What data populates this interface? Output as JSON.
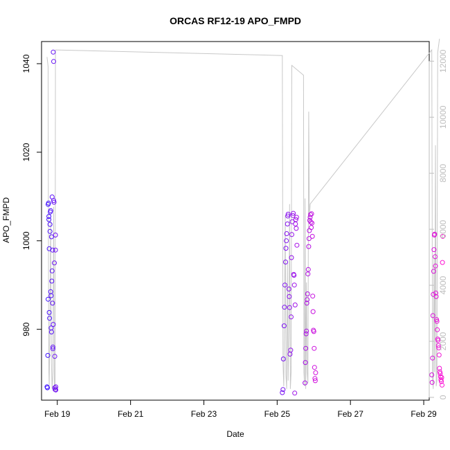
{
  "chart_data": {
    "type": "scatter",
    "title": "ORCAS RF12-19 APO_FMPD",
    "xlabel": "Date",
    "ylabel": "APO_FMPD",
    "ylim": [
      964,
      1045
    ],
    "xlim": [
      0.57,
      11.15
    ],
    "x_unit": "days after Feb 18, 00:00",
    "xticks": [
      {
        "value": 1,
        "label": "Feb 19"
      },
      {
        "value": 3,
        "label": "Feb 21"
      },
      {
        "value": 5,
        "label": "Feb 23"
      },
      {
        "value": 7,
        "label": "Feb 25"
      },
      {
        "value": 9,
        "label": "Feb 27"
      },
      {
        "value": 11,
        "label": "Feb 29"
      }
    ],
    "yticks": [
      {
        "value": 980,
        "label": "980"
      },
      {
        "value": 1000,
        "label": "1000"
      },
      {
        "value": 1020,
        "label": "1020"
      },
      {
        "value": 1040,
        "label": "1040"
      }
    ],
    "y2lim": [
      -100,
      12700
    ],
    "y2ticks": [
      {
        "value": 0,
        "label": "0"
      },
      {
        "value": 2000,
        "label": "2000"
      },
      {
        "value": 4000,
        "label": "4000"
      },
      {
        "value": 6000,
        "label": "6000"
      },
      {
        "value": 8000,
        "label": "8000"
      },
      {
        "value": 10000,
        "label": "10000"
      },
      {
        "value": 12000,
        "label": "12000"
      }
    ],
    "grid": false,
    "colors": {
      "start": "#3b10ff",
      "end": "#ff10d2",
      "altitude_line": "#c8c8c8"
    },
    "altitude_line": [
      [
        0.72,
        12150
      ],
      [
        0.75,
        11800
      ],
      [
        0.76,
        4000
      ],
      [
        0.77,
        900
      ],
      [
        0.78,
        400
      ],
      [
        0.8,
        2800
      ],
      [
        0.82,
        6300
      ],
      [
        0.84,
        1200
      ],
      [
        0.86,
        300
      ],
      [
        0.88,
        900
      ],
      [
        0.9,
        6800
      ],
      [
        0.92,
        400
      ],
      [
        0.94,
        200
      ],
      [
        0.95,
        12400
      ],
      [
        7.14,
        12200
      ],
      [
        7.16,
        1200
      ],
      [
        7.18,
        400
      ],
      [
        7.2,
        2800
      ],
      [
        7.22,
        6500
      ],
      [
        7.24,
        800
      ],
      [
        7.26,
        300
      ],
      [
        7.28,
        4800
      ],
      [
        7.3,
        600
      ],
      [
        7.32,
        2300
      ],
      [
        7.34,
        6900
      ],
      [
        7.36,
        300
      ],
      [
        7.38,
        900
      ],
      [
        7.4,
        11850
      ],
      [
        7.72,
        11500
      ],
      [
        7.73,
        900
      ],
      [
        7.75,
        400
      ],
      [
        7.76,
        7100
      ],
      [
        7.78,
        300
      ],
      [
        7.8,
        4100
      ],
      [
        7.82,
        900
      ],
      [
        7.84,
        500
      ],
      [
        7.86,
        10200
      ],
      [
        7.88,
        6400
      ],
      [
        7.9,
        6900
      ],
      [
        11.22,
        12400
      ],
      [
        11.24,
        600
      ],
      [
        11.26,
        300
      ],
      [
        11.28,
        5000
      ],
      [
        11.3,
        900
      ],
      [
        11.32,
        9000
      ],
      [
        11.34,
        400
      ],
      [
        11.36,
        600
      ],
      [
        11.38,
        12300
      ],
      [
        11.43,
        12800
      ]
    ],
    "points": [
      [
        0.72,
        967.0
      ],
      [
        0.73,
        966.8
      ],
      [
        0.74,
        974.1
      ],
      [
        0.75,
        986.8
      ],
      [
        0.75,
        1008.2
      ],
      [
        0.76,
        1008.5
      ],
      [
        0.77,
        1004.8
      ],
      [
        0.77,
        1005.5
      ],
      [
        0.78,
        998.2
      ],
      [
        0.78,
        983.8
      ],
      [
        0.79,
        982.5
      ],
      [
        0.8,
        1002.1
      ],
      [
        0.8,
        1003.7
      ],
      [
        0.81,
        1006.5
      ],
      [
        0.82,
        1006.8
      ],
      [
        0.82,
        988.5
      ],
      [
        0.83,
        987.6
      ],
      [
        0.83,
        980.3
      ],
      [
        0.84,
        979.4
      ],
      [
        0.84,
        1000.9
      ],
      [
        0.85,
        990.9
      ],
      [
        0.86,
        993.2
      ],
      [
        0.86,
        1009.9
      ],
      [
        0.87,
        997.9
      ],
      [
        0.87,
        985.9
      ],
      [
        0.88,
        976.0
      ],
      [
        0.88,
        975.6
      ],
      [
        0.89,
        981.1
      ],
      [
        0.89,
        1042.6
      ],
      [
        0.9,
        1040.5
      ],
      [
        0.9,
        1009.1
      ],
      [
        0.91,
        1008.7
      ],
      [
        0.92,
        995.0
      ],
      [
        0.93,
        973.9
      ],
      [
        0.93,
        966.8
      ],
      [
        0.94,
        966.4
      ],
      [
        0.95,
        997.9
      ],
      [
        0.95,
        1001.3
      ],
      [
        0.96,
        967.0
      ],
      [
        0.96,
        966.3
      ],
      [
        7.14,
        965.7
      ],
      [
        7.16,
        966.4
      ],
      [
        7.17,
        973.3
      ],
      [
        7.19,
        980.8
      ],
      [
        7.2,
        985.0
      ],
      [
        7.21,
        990.0
      ],
      [
        7.23,
        995.2
      ],
      [
        7.24,
        998.3
      ],
      [
        7.25,
        1000.0
      ],
      [
        7.26,
        1001.6
      ],
      [
        7.28,
        1003.8
      ],
      [
        7.29,
        1005.6
      ],
      [
        7.3,
        1006.0
      ],
      [
        7.32,
        989.1
      ],
      [
        7.33,
        987.4
      ],
      [
        7.34,
        984.9
      ],
      [
        7.35,
        974.4
      ],
      [
        7.37,
        975.3
      ],
      [
        7.38,
        982.8
      ],
      [
        7.39,
        996.2
      ],
      [
        7.4,
        1001.4
      ],
      [
        7.41,
        1004.3
      ],
      [
        7.43,
        1005.7
      ],
      [
        7.44,
        1006.2
      ],
      [
        7.45,
        992.4
      ],
      [
        7.46,
        992.2
      ],
      [
        7.47,
        990.0
      ],
      [
        7.48,
        965.6
      ],
      [
        7.49,
        985.5
      ],
      [
        7.5,
        1003.8
      ],
      [
        7.51,
        1004.8
      ],
      [
        7.52,
        1002.8
      ],
      [
        7.53,
        1005.3
      ],
      [
        7.54,
        999.0
      ],
      [
        7.76,
        967.9
      ],
      [
        7.77,
        972.5
      ],
      [
        7.78,
        975.7
      ],
      [
        7.79,
        979.0
      ],
      [
        7.8,
        979.6
      ],
      [
        7.81,
        985.9
      ],
      [
        7.82,
        986.7
      ],
      [
        7.83,
        988.0
      ],
      [
        7.84,
        992.5
      ],
      [
        7.85,
        993.5
      ],
      [
        7.86,
        998.7
      ],
      [
        7.87,
        1000.5
      ],
      [
        7.88,
        1002.3
      ],
      [
        7.89,
        1004.6
      ],
      [
        7.9,
        1005.3
      ],
      [
        7.91,
        1005.9
      ],
      [
        7.92,
        1004.2
      ],
      [
        7.93,
        1003.0
      ],
      [
        7.94,
        1006.1
      ],
      [
        7.95,
        1004.0
      ],
      [
        7.96,
        1001.0
      ],
      [
        7.97,
        987.5
      ],
      [
        7.98,
        984.0
      ],
      [
        7.99,
        979.8
      ],
      [
        8.0,
        979.5
      ],
      [
        8.01,
        975.7
      ],
      [
        8.02,
        971.4
      ],
      [
        8.03,
        968.9
      ],
      [
        8.04,
        968.4
      ],
      [
        8.05,
        970.2
      ],
      [
        11.22,
        969.7
      ],
      [
        11.23,
        968.0
      ],
      [
        11.24,
        973.5
      ],
      [
        11.25,
        983.1
      ],
      [
        11.26,
        987.9
      ],
      [
        11.27,
        993.1
      ],
      [
        11.28,
        998.0
      ],
      [
        11.29,
        1001.3
      ],
      [
        11.3,
        1001.5
      ],
      [
        11.31,
        996.4
      ],
      [
        11.32,
        994.3
      ],
      [
        11.33,
        988.2
      ],
      [
        11.34,
        987.4
      ],
      [
        11.35,
        982.2
      ],
      [
        11.36,
        981.8
      ],
      [
        11.37,
        979.9
      ],
      [
        11.38,
        977.8
      ],
      [
        11.39,
        977.5
      ],
      [
        11.4,
        976.3
      ],
      [
        11.41,
        975.8
      ],
      [
        11.42,
        974.2
      ],
      [
        11.43,
        971.2
      ],
      [
        11.44,
        970.4
      ],
      [
        11.45,
        970.0
      ],
      [
        11.46,
        969.3
      ],
      [
        11.47,
        968.6
      ],
      [
        11.48,
        968.2
      ],
      [
        11.49,
        969.1
      ],
      [
        11.5,
        967.4
      ],
      [
        11.51,
        995.1
      ],
      [
        11.52,
        1001.0
      ]
    ]
  }
}
